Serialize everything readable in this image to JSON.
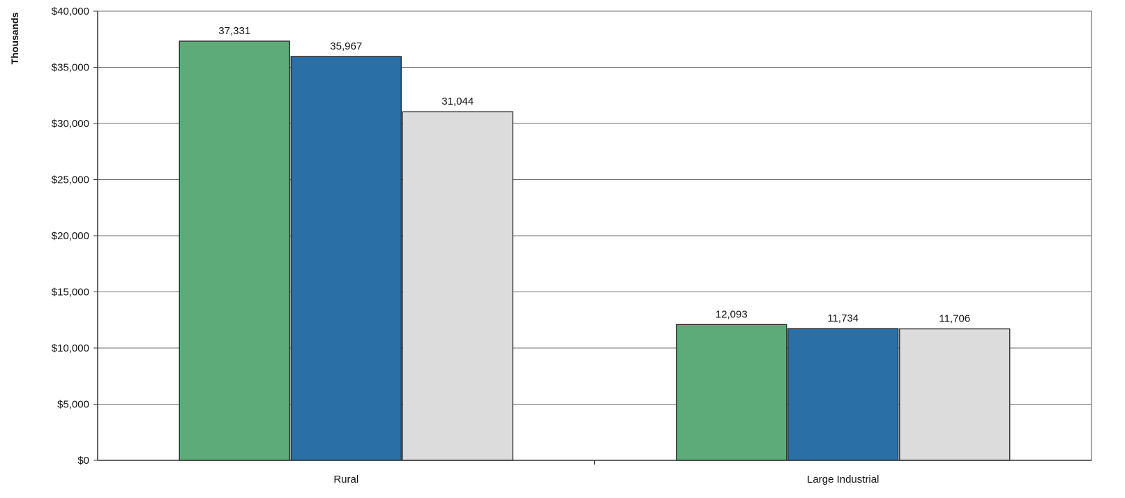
{
  "chart_data": {
    "type": "bar",
    "categories": [
      "Rural",
      "Large Industrial"
    ],
    "series": [
      {
        "color": "#5cab78",
        "values": [
          37331,
          12093
        ]
      },
      {
        "color": "#2a6fa6",
        "values": [
          35967,
          11734
        ]
      },
      {
        "color": "#dcdcdc",
        "values": [
          31044,
          11706
        ]
      }
    ],
    "data_labels": [
      [
        "37,331",
        "12,093"
      ],
      [
        "35,967",
        "11,734"
      ],
      [
        "31,044",
        "11,706"
      ]
    ],
    "ylabel": "Thousands",
    "ylim": [
      0,
      40000
    ],
    "y_ticks": [
      0,
      5000,
      10000,
      15000,
      20000,
      25000,
      30000,
      35000,
      40000
    ],
    "y_tick_labels": [
      "$0",
      "$5,000",
      "$10,000",
      "$15,000",
      "$20,000",
      "$25,000",
      "$30,000",
      "$35,000",
      "$40,000"
    ],
    "grid": true,
    "legend": false
  }
}
